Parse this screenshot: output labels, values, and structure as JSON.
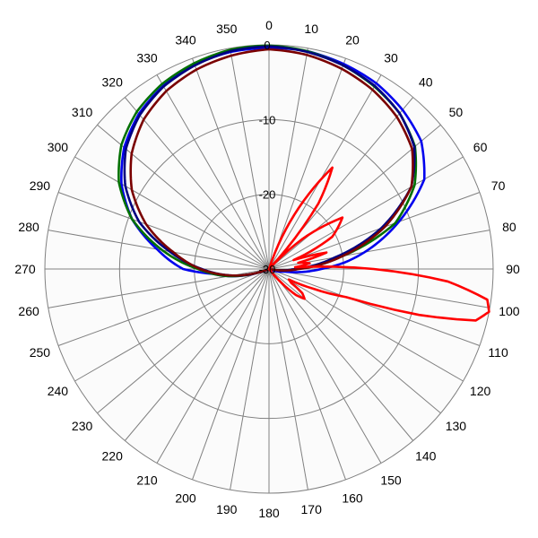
{
  "chart_data": {
    "type": "polar-line",
    "radial_axis": {
      "range": [
        -30,
        0
      ],
      "ticks": [
        0,
        -10,
        -20,
        -30
      ]
    },
    "angular_axis": {
      "unit": "degrees",
      "direction": "clockwise",
      "zero_at": "top",
      "ticks": [
        0,
        10,
        20,
        30,
        40,
        50,
        60,
        70,
        80,
        90,
        100,
        110,
        120,
        130,
        140,
        150,
        160,
        170,
        180,
        190,
        200,
        210,
        220,
        230,
        240,
        250,
        260,
        270,
        280,
        290,
        300,
        310,
        320,
        330,
        340,
        350
      ]
    },
    "grid": true,
    "legend": "none",
    "series": [
      {
        "color": "#0000ee",
        "points": [
          [
            0,
            -0.4
          ],
          [
            10,
            -0.4
          ],
          [
            20,
            -0.8
          ],
          [
            30,
            -1.3
          ],
          [
            40,
            -2.2
          ],
          [
            50,
            -3.4
          ],
          [
            60,
            -6.0
          ],
          [
            70,
            -11.5
          ],
          [
            80,
            -17.0
          ],
          [
            85,
            -19.8
          ],
          [
            90,
            -23.0
          ],
          [
            100,
            -28.0
          ],
          [
            110,
            -29.5
          ],
          [
            120,
            -30
          ],
          [
            180,
            -30
          ],
          [
            240,
            -30
          ],
          [
            250,
            -29.0
          ],
          [
            260,
            -24.5
          ],
          [
            265,
            -22.5
          ],
          [
            270,
            -18.5
          ],
          [
            280,
            -14.8
          ],
          [
            290,
            -10.5
          ],
          [
            300,
            -7.2
          ],
          [
            310,
            -4.7
          ],
          [
            320,
            -2.9
          ],
          [
            330,
            -1.7
          ],
          [
            340,
            -0.9
          ],
          [
            350,
            -0.5
          ],
          [
            360,
            -0.4
          ]
        ]
      },
      {
        "color": "#007000",
        "points": [
          [
            0,
            -0.1
          ],
          [
            10,
            -0.4
          ],
          [
            20,
            -1.0
          ],
          [
            30,
            -1.8
          ],
          [
            40,
            -2.8
          ],
          [
            50,
            -4.5
          ],
          [
            60,
            -7.5
          ],
          [
            70,
            -12.0
          ],
          [
            80,
            -20.0
          ],
          [
            90,
            -26.5
          ],
          [
            100,
            -29.5
          ],
          [
            110,
            -30
          ],
          [
            180,
            -30
          ],
          [
            245,
            -30
          ],
          [
            250,
            -29.2
          ],
          [
            260,
            -24.5
          ],
          [
            270,
            -20.5
          ],
          [
            280,
            -15.5
          ],
          [
            290,
            -10.5
          ],
          [
            300,
            -6.8
          ],
          [
            310,
            -4.2
          ],
          [
            320,
            -2.5
          ],
          [
            330,
            -1.4
          ],
          [
            340,
            -0.7
          ],
          [
            350,
            -0.2
          ],
          [
            360,
            -0.1
          ]
        ]
      },
      {
        "color": "#000080",
        "points": [
          [
            0,
            -0.2
          ],
          [
            10,
            -0.5
          ],
          [
            20,
            -1.0
          ],
          [
            30,
            -1.7
          ],
          [
            40,
            -2.8
          ],
          [
            50,
            -4.6
          ],
          [
            60,
            -8.0
          ],
          [
            70,
            -14.0
          ],
          [
            80,
            -21.0
          ],
          [
            90,
            -26.5
          ],
          [
            100,
            -29.5
          ],
          [
            110,
            -30
          ],
          [
            180,
            -30
          ],
          [
            245,
            -30
          ],
          [
            250,
            -29.0
          ],
          [
            260,
            -25.0
          ],
          [
            270,
            -21.0
          ],
          [
            280,
            -16.5
          ],
          [
            290,
            -11.5
          ],
          [
            300,
            -7.8
          ],
          [
            310,
            -5.0
          ],
          [
            320,
            -3.1
          ],
          [
            330,
            -1.8
          ],
          [
            340,
            -1.0
          ],
          [
            350,
            -0.4
          ],
          [
            360,
            -0.2
          ]
        ]
      },
      {
        "color": "#7a0000",
        "points": [
          [
            0,
            -0.6
          ],
          [
            10,
            -0.9
          ],
          [
            20,
            -1.5
          ],
          [
            30,
            -2.3
          ],
          [
            40,
            -3.4
          ],
          [
            50,
            -5.0
          ],
          [
            60,
            -8.0
          ],
          [
            70,
            -13.5
          ],
          [
            80,
            -20.0
          ],
          [
            90,
            -26.0
          ],
          [
            100,
            -29.5
          ],
          [
            110,
            -30
          ],
          [
            180,
            -30
          ],
          [
            245,
            -30
          ],
          [
            250,
            -29.2
          ],
          [
            260,
            -25.0
          ],
          [
            270,
            -20.8
          ],
          [
            280,
            -17.0
          ],
          [
            290,
            -12.5
          ],
          [
            300,
            -8.8
          ],
          [
            310,
            -6.0
          ],
          [
            320,
            -3.9
          ],
          [
            330,
            -2.5
          ],
          [
            340,
            -1.6
          ],
          [
            350,
            -1.0
          ],
          [
            360,
            -0.6
          ]
        ]
      },
      {
        "color": "#ff0000",
        "points": [
          [
            0,
            -30
          ],
          [
            18,
            -30
          ],
          [
            25,
            -22
          ],
          [
            32,
            -14
          ],
          [
            37,
            -19
          ],
          [
            43,
            -30
          ],
          [
            48,
            -24
          ],
          [
            55,
            -18
          ],
          [
            63,
            -20.5
          ],
          [
            70,
            -26.5
          ],
          [
            74,
            -22
          ],
          [
            78,
            -26
          ],
          [
            82,
            -24.5
          ],
          [
            86,
            -26.5
          ],
          [
            90,
            -16
          ],
          [
            94,
            -6
          ],
          [
            98,
            -0.5
          ],
          [
            101,
            0
          ],
          [
            104,
            -1.5
          ],
          [
            107,
            -9
          ],
          [
            110,
            -19
          ],
          [
            114,
            -23.5
          ],
          [
            118,
            -27
          ],
          [
            122,
            -26.5
          ],
          [
            126,
            -24.5
          ],
          [
            130,
            -23.8
          ],
          [
            134,
            -25
          ],
          [
            138,
            -27.5
          ],
          [
            142,
            -30
          ],
          [
            360,
            -30
          ]
        ]
      }
    ]
  }
}
